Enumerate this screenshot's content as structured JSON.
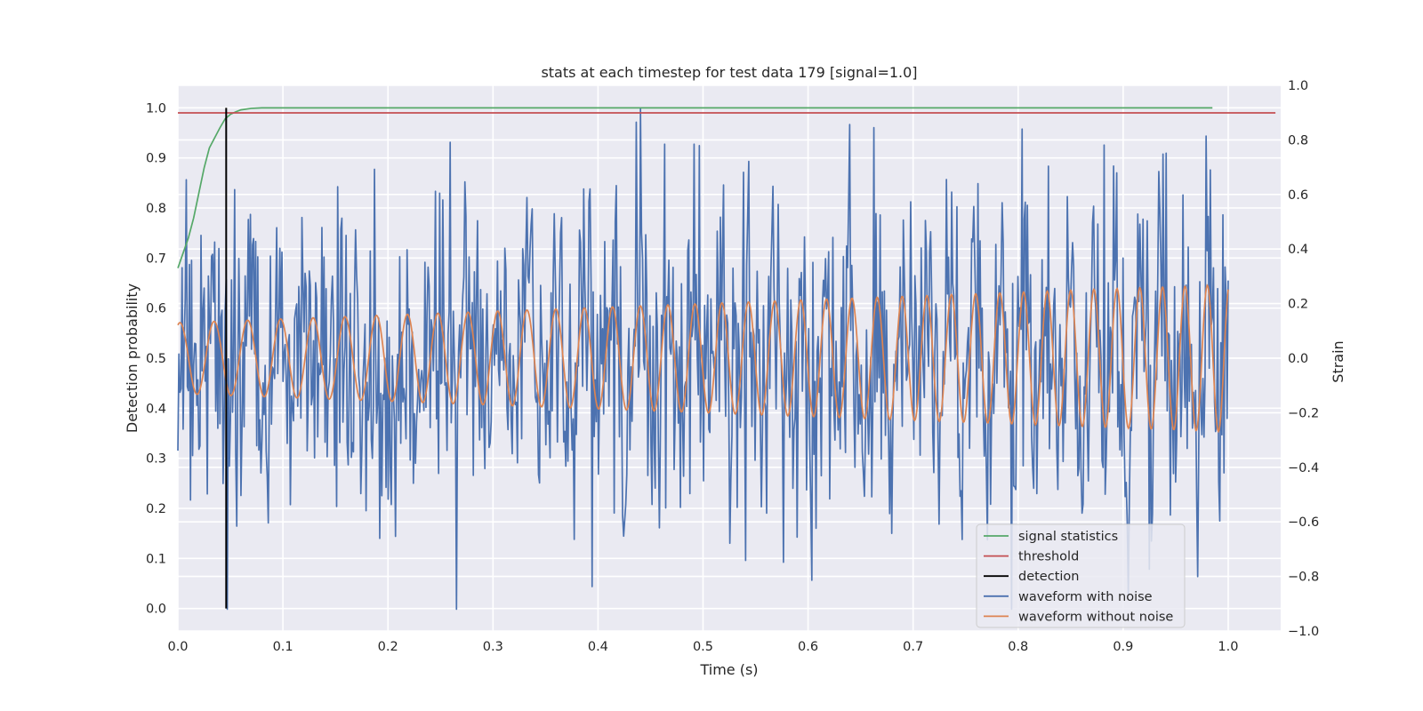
{
  "chart_data": {
    "type": "line",
    "title": "stats at each timestep for test data 179 [signal=1.0]",
    "xlabel": "Time (s)",
    "ylabel": "Detection probability",
    "y2label": "Strain",
    "xlim": [
      0.0,
      1.05
    ],
    "ylim": [
      -0.045,
      1.045
    ],
    "y2lim": [
      -1.0,
      1.0
    ],
    "xticks": [
      0.0,
      0.1,
      0.2,
      0.3,
      0.4,
      0.5,
      0.6,
      0.7,
      0.8,
      0.9,
      1.0
    ],
    "xtick_labels": [
      "0.0",
      "0.1",
      "0.2",
      "0.3",
      "0.4",
      "0.5",
      "0.6",
      "0.7",
      "0.8",
      "0.9",
      "1.0"
    ],
    "yticks": [
      0.0,
      0.1,
      0.2,
      0.3,
      0.4,
      0.5,
      0.6,
      0.7,
      0.8,
      0.9,
      1.0
    ],
    "ytick_labels": [
      "0.0",
      "0.1",
      "0.2",
      "0.3",
      "0.4",
      "0.5",
      "0.6",
      "0.7",
      "0.8",
      "0.9",
      "1.0"
    ],
    "y2ticks": [
      -1.0,
      -0.8,
      -0.6,
      -0.4,
      -0.2,
      0.0,
      0.2,
      0.4,
      0.6,
      0.8,
      1.0
    ],
    "y2tick_labels": [
      "−1.0",
      "−0.8",
      "−0.6",
      "−0.4",
      "−0.2",
      "0.0",
      "0.2",
      "0.4",
      "0.6",
      "0.8",
      "1.0"
    ],
    "grid": true,
    "legend_position": "lower-right",
    "series": [
      {
        "name": "signal statistics",
        "color": "#55a868",
        "axis": "left",
        "x": [
          0.0,
          0.005,
          0.01,
          0.015,
          0.02,
          0.025,
          0.03,
          0.035,
          0.04,
          0.045,
          0.05,
          0.055,
          0.06,
          0.07,
          0.08,
          0.1,
          0.2,
          0.4,
          0.6,
          0.8,
          0.985
        ],
        "y": [
          0.68,
          0.71,
          0.74,
          0.78,
          0.83,
          0.88,
          0.92,
          0.94,
          0.96,
          0.978,
          0.987,
          0.992,
          0.996,
          0.999,
          1.0,
          1.0,
          1.0,
          1.0,
          1.0,
          1.0,
          1.0
        ]
      },
      {
        "name": "threshold",
        "color": "#c44e52",
        "axis": "left",
        "x": [
          0.0,
          1.045
        ],
        "y": [
          0.99,
          0.99
        ]
      },
      {
        "name": "detection",
        "color": "#000000",
        "axis": "left",
        "x": [
          0.046,
          0.046
        ],
        "y": [
          0.0,
          1.0
        ]
      },
      {
        "name": "waveform with noise",
        "color": "#4c72b0",
        "axis": "right",
        "x_start": 0.0,
        "x_end": 1.0,
        "noise": {
          "count": 1000,
          "stddev": 0.3,
          "seed": 179,
          "max": 1.0,
          "min": -0.92
        }
      },
      {
        "name": "waveform without noise",
        "color": "#dd8452",
        "axis": "right",
        "x_start": 0.0,
        "x_end": 1.0,
        "model": {
          "amplitude_start": 0.13,
          "amplitude_end": 0.27,
          "frequency_start_hz": 30,
          "frequency_end_hz": 48,
          "cycles_visible": 39
        }
      }
    ]
  }
}
